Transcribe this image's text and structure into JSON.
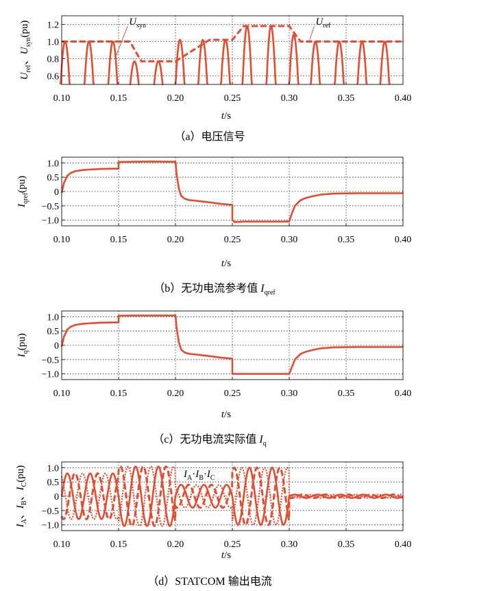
{
  "colors": {
    "curve": "#e84a2e"
  },
  "chart_data": [
    {
      "type": "line",
      "caption": "（a）电压信号",
      "xlabel_var": "t",
      "xlabel_unit": "/s",
      "ylabel": {
        "v1": "U",
        "s1": "ref",
        "sep": "、",
        "v2": "U",
        "s2": "syn",
        "unit": "(pu)"
      },
      "xlim": [
        0.1,
        0.4
      ],
      "ylim": [
        0.5,
        1.3
      ],
      "xticks": [
        "0.10",
        "0.15",
        "0.20",
        "0.25",
        "0.30",
        "0.35",
        "0.40"
      ],
      "yticks": [
        "1.2",
        "1.0",
        "0.8",
        "0.6"
      ],
      "ytick_values": [
        1.2,
        1.0,
        0.8,
        0.6
      ],
      "series": [
        {
          "name": "U_ref",
          "style": "dashed",
          "x": [
            0.1,
            0.16,
            0.17,
            0.2,
            0.23,
            0.25,
            0.26,
            0.3,
            0.31,
            0.4
          ],
          "y": [
            1.0,
            1.0,
            0.77,
            0.77,
            1.02,
            1.02,
            1.18,
            1.18,
            1.0,
            1.0
          ]
        },
        {
          "name": "U_syn",
          "style": "pulses",
          "peaks_x": [
            0.103,
            0.124,
            0.145,
            0.164,
            0.185,
            0.204,
            0.224,
            0.244,
            0.263,
            0.284,
            0.304,
            0.323,
            0.344,
            0.364,
            0.384
          ],
          "peaks_y": [
            1.0,
            1.0,
            1.0,
            0.77,
            0.77,
            1.02,
            1.02,
            1.02,
            1.18,
            1.18,
            1.08,
            1.0,
            1.0,
            1.0,
            1.0
          ]
        }
      ],
      "annotations": [
        {
          "var": "U",
          "sub": "syn",
          "at_x": 0.148,
          "at_y": 0.84,
          "text_x": 0.158,
          "text_y": 1.23
        },
        {
          "var": "U",
          "sub": "ref",
          "at_x": 0.318,
          "at_y": 1.02,
          "text_x": 0.322,
          "text_y": 1.23
        }
      ]
    },
    {
      "type": "line",
      "caption": "（b）无功电流参考值",
      "caption_var": "I",
      "caption_sub": "qref",
      "xlabel_var": "t",
      "xlabel_unit": "/s",
      "ylabel": {
        "v1": "I",
        "s1": "qref",
        "unit": "(pu)"
      },
      "xlim": [
        0.1,
        0.4
      ],
      "ylim": [
        -1.2,
        1.2
      ],
      "xticks": [
        "0.10",
        "0.15",
        "0.20",
        "0.25",
        "0.30",
        "0.35",
        "0.40"
      ],
      "yticks": [
        "1.0",
        "0.5",
        "0",
        "−0.5",
        "−1.0"
      ],
      "ytick_values": [
        1.0,
        0.5,
        0,
        -0.5,
        -1.0
      ],
      "series": [
        {
          "name": "I_qref",
          "x": [
            0.1,
            0.102,
            0.105,
            0.108,
            0.112,
            0.118,
            0.125,
            0.135,
            0.145,
            0.15,
            0.15,
            0.16,
            0.18,
            0.2,
            0.201,
            0.203,
            0.205,
            0.208,
            0.212,
            0.22,
            0.23,
            0.24,
            0.25,
            0.25,
            0.252,
            0.26,
            0.28,
            0.3,
            0.302,
            0.305,
            0.31,
            0.315,
            0.32,
            0.325,
            0.33,
            0.34,
            0.36,
            0.38,
            0.4
          ],
          "y": [
            -0.05,
            0.3,
            0.55,
            0.65,
            0.71,
            0.75,
            0.77,
            0.79,
            0.8,
            0.8,
            1.03,
            1.04,
            1.05,
            1.04,
            0.6,
            0.1,
            -0.15,
            -0.25,
            -0.3,
            -0.33,
            -0.38,
            -0.43,
            -0.47,
            -1.0,
            -1.07,
            -1.05,
            -1.05,
            -1.05,
            -0.8,
            -0.5,
            -0.3,
            -0.22,
            -0.17,
            -0.13,
            -0.1,
            -0.07,
            -0.06,
            -0.06,
            -0.06
          ]
        }
      ]
    },
    {
      "type": "line",
      "caption": "（c）无功电流实际值",
      "caption_var": "I",
      "caption_sub": "q",
      "xlabel_var": "t",
      "xlabel_unit": "/s",
      "ylabel": {
        "v1": "I",
        "s1": "q",
        "unit": "(pu)"
      },
      "xlim": [
        0.1,
        0.4
      ],
      "ylim": [
        -1.2,
        1.2
      ],
      "xticks": [
        "0.10",
        "0.15",
        "0.20",
        "0.25",
        "0.30",
        "0.35",
        "0.40"
      ],
      "yticks": [
        "1.0",
        "0.5",
        "0",
        "−0.5",
        "−1.0"
      ],
      "ytick_values": [
        1.0,
        0.5,
        0,
        -0.5,
        -1.0
      ],
      "series": [
        {
          "name": "I_q",
          "x": [
            0.1,
            0.102,
            0.105,
            0.108,
            0.112,
            0.118,
            0.125,
            0.135,
            0.145,
            0.15,
            0.15,
            0.16,
            0.18,
            0.2,
            0.201,
            0.203,
            0.205,
            0.208,
            0.212,
            0.22,
            0.23,
            0.24,
            0.25,
            0.25,
            0.26,
            0.28,
            0.3,
            0.302,
            0.305,
            0.31,
            0.315,
            0.32,
            0.325,
            0.33,
            0.34,
            0.36,
            0.38,
            0.4
          ],
          "y": [
            -0.05,
            0.3,
            0.55,
            0.65,
            0.71,
            0.75,
            0.77,
            0.79,
            0.8,
            0.8,
            1.03,
            1.04,
            1.04,
            1.04,
            0.6,
            0.1,
            -0.15,
            -0.25,
            -0.3,
            -0.33,
            -0.38,
            -0.43,
            -0.47,
            -1.0,
            -1.0,
            -1.0,
            -1.0,
            -0.8,
            -0.5,
            -0.3,
            -0.22,
            -0.17,
            -0.13,
            -0.1,
            -0.07,
            -0.06,
            -0.06,
            -0.06
          ]
        }
      ]
    },
    {
      "type": "line",
      "caption": "（d）STATCOM 输出电流",
      "xlabel_var": "t",
      "xlabel_unit": "/s",
      "ylabel": {
        "v1": "I",
        "s1": "A",
        "sep": "、",
        "v2": "I",
        "s2": "B",
        "sep2": "、",
        "v3": "I",
        "s3": "C",
        "unit": "(pu)"
      },
      "xlim": [
        0.1,
        0.4
      ],
      "ylim": [
        -1.2,
        1.2
      ],
      "xticks": [
        "0.10",
        "0.15",
        "0.20",
        "0.25",
        "0.30",
        "0.35",
        "0.40"
      ],
      "yticks": [
        "1.0",
        "0.5",
        "0",
        "−0.5",
        "−1.0"
      ],
      "ytick_values": [
        1.0,
        0.5,
        0,
        -0.5,
        -1.0
      ],
      "frequency_hz": 50,
      "amplitude_segments": [
        {
          "x0": 0.1,
          "x1": 0.15,
          "amplitude": 0.8
        },
        {
          "x0": 0.15,
          "x1": 0.2,
          "amplitude": 1.04
        },
        {
          "x0": 0.2,
          "x1": 0.25,
          "amplitude": 0.4
        },
        {
          "x0": 0.25,
          "x1": 0.3,
          "amplitude": 1.0
        },
        {
          "x0": 0.3,
          "x1": 0.4,
          "amplitude": 0.06
        }
      ],
      "series": [
        {
          "name": "I_A",
          "style": "solid",
          "phase_deg": 0
        },
        {
          "name": "I_B",
          "style": "dashed",
          "phase_deg": -120
        },
        {
          "name": "I_C",
          "style": "dotted",
          "phase_deg": 120
        }
      ],
      "legend_label": {
        "a": "I",
        "as": "A",
        "b": "I",
        "bs": "B",
        "c": "I",
        "cs": "C"
      }
    }
  ]
}
